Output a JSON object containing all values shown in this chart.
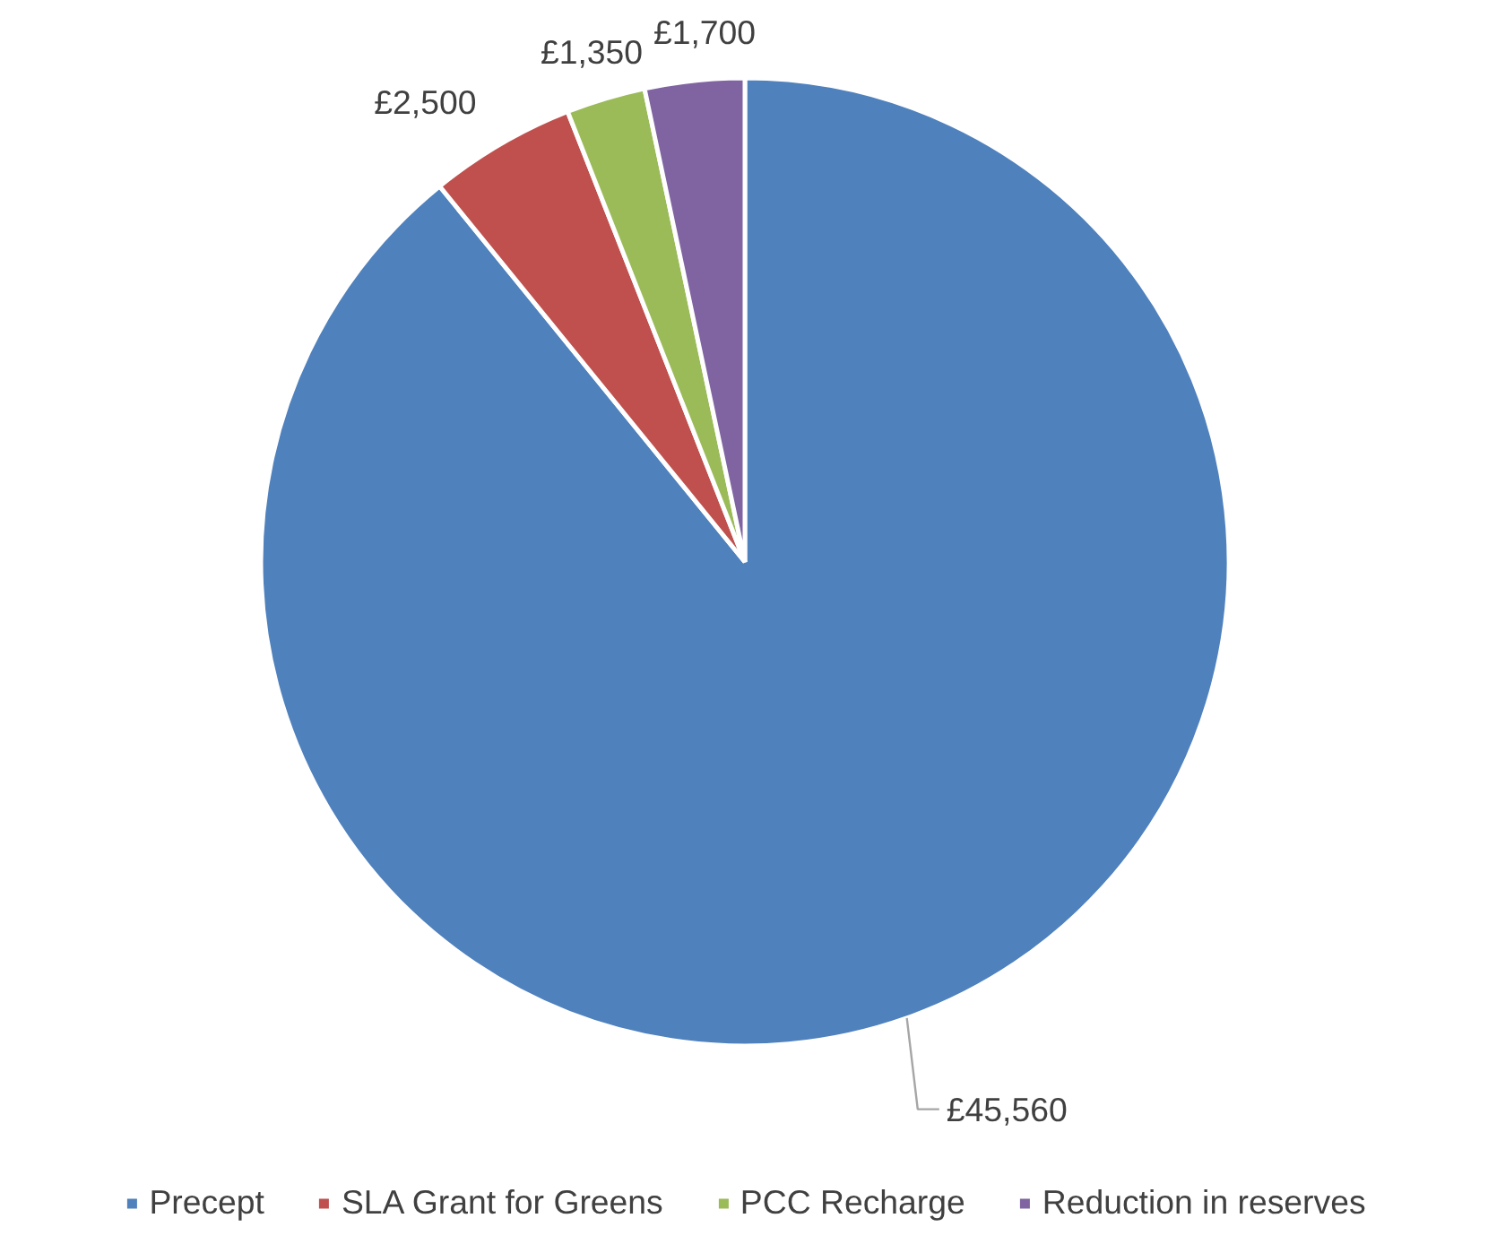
{
  "chart_data": {
    "type": "pie",
    "categories": [
      "Precept",
      "SLA Grant for Greens",
      "PCC Recharge",
      "Reduction in reserves"
    ],
    "values": [
      45560,
      2500,
      1350,
      1700
    ],
    "value_labels": [
      "£45,560",
      "£2,500",
      "£1,350",
      "£1,700"
    ],
    "colors": [
      "#4f81bd",
      "#c0504d",
      "#9bbb59",
      "#8064a2"
    ],
    "legend": "bottom"
  }
}
